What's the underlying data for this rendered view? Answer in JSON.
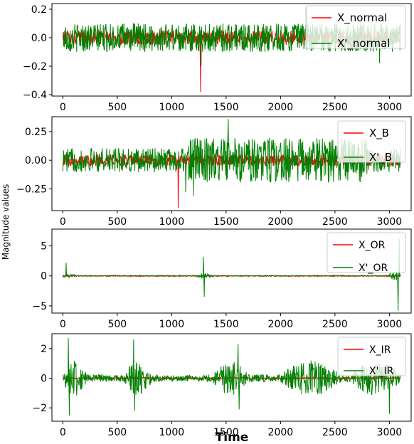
{
  "figure": {
    "ylabel": "Magnitude values",
    "xlabel": "Time",
    "colors": {
      "X": "#ff0000",
      "X_prime": "#008000"
    }
  },
  "chart_data": [
    {
      "type": "line",
      "xlim": [
        -100,
        3200
      ],
      "ylim": [
        -0.41,
        0.24
      ],
      "xticks": [
        0,
        500,
        1000,
        1500,
        2000,
        2500,
        3000
      ],
      "yticks": [
        0.2,
        0.0,
        -0.2,
        -0.4
      ],
      "ytick_labels": [
        "0.2",
        "0.0",
        "−0.2",
        "−0.4"
      ],
      "legend_position": "top-right",
      "series": [
        {
          "name": "X_normal",
          "color": "#ff0000",
          "amplitude": 0.05,
          "spikes": [
            [
              1265,
              -0.38
            ]
          ]
        },
        {
          "name": "X'_normal",
          "color": "#008000",
          "amplitude": 0.1,
          "spikes": [
            [
              2240,
              0.22
            ],
            [
              1270,
              -0.2
            ],
            [
              2910,
              -0.18
            ]
          ]
        }
      ]
    },
    {
      "type": "line",
      "xlim": [
        -100,
        3200
      ],
      "ylim": [
        -0.44,
        0.38
      ],
      "xticks": [
        0,
        500,
        1000,
        1500,
        2000,
        2500,
        3000
      ],
      "yticks": [
        0.25,
        0.0,
        -0.25
      ],
      "ytick_labels": [
        "0.25",
        "0.00",
        "−0.25"
      ],
      "legend_position": "top-right",
      "series": [
        {
          "name": "X_B",
          "color": "#ff0000",
          "amplitude": 0.05,
          "spikes": [
            [
              1060,
              -0.42
            ]
          ]
        },
        {
          "name": "X'_B",
          "color": "#008000",
          "amplitude": 0.15,
          "spikes": [
            [
              1520,
              0.36
            ],
            [
              1130,
              -0.28
            ],
            [
              1200,
              -0.31
            ]
          ]
        }
      ]
    },
    {
      "type": "line",
      "xlim": [
        -100,
        3200
      ],
      "ylim": [
        -6.2,
        7.8
      ],
      "xticks": [
        0,
        500,
        1000,
        1500,
        2000,
        2500,
        3000
      ],
      "yticks": [
        5,
        0,
        -5
      ],
      "ytick_labels": [
        "5",
        "0",
        "−5"
      ],
      "legend_position": "top-right",
      "series": [
        {
          "name": "X_OR",
          "color": "#ff0000",
          "amplitude": 0.1,
          "spikes": []
        },
        {
          "name": "X'_OR",
          "color": "#008000",
          "amplitude": 0.25,
          "spikes": [
            [
              30,
              2.2
            ],
            [
              1290,
              3.2
            ],
            [
              1300,
              -3.5
            ],
            [
              3090,
              6.2
            ],
            [
              3080,
              -5.8
            ]
          ]
        }
      ]
    },
    {
      "type": "line",
      "xlim": [
        -100,
        3200
      ],
      "ylim": [
        -2.9,
        3.0
      ],
      "xticks": [
        0,
        500,
        1000,
        1500,
        2000,
        2500,
        3000
      ],
      "yticks": [
        2,
        0,
        -2
      ],
      "ytick_labels": [
        "2",
        "0",
        "−2"
      ],
      "legend_position": "top-right",
      "series": [
        {
          "name": "X_IR",
          "color": "#ff0000",
          "amplitude": 0.06,
          "spikes": []
        },
        {
          "name": "X'_IR",
          "color": "#008000",
          "amplitude": 1.0,
          "spikes": [
            [
              50,
              2.7
            ],
            [
              60,
              -2.5
            ],
            [
              650,
              2.6
            ],
            [
              660,
              -2.2
            ],
            [
              1610,
              2.3
            ],
            [
              1620,
              -2.1
            ],
            [
              3000,
              -2.4
            ]
          ]
        }
      ]
    }
  ]
}
